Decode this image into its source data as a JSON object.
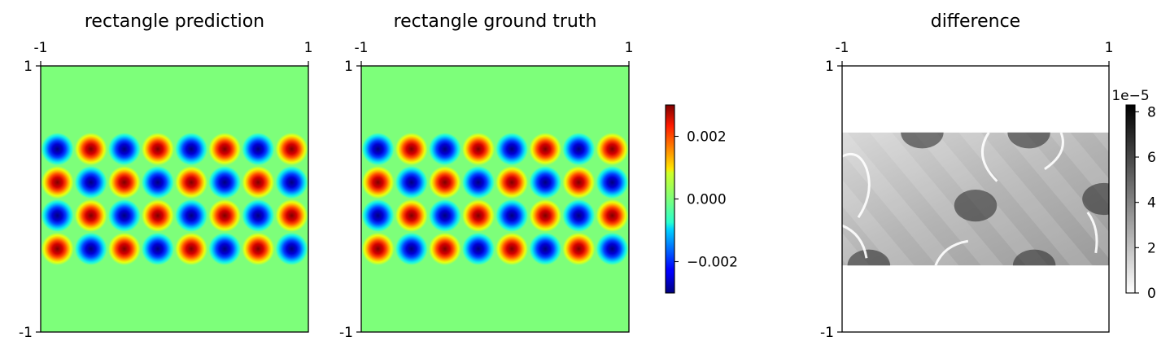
{
  "chart_data": [
    {
      "type": "heatmap",
      "title": "rectangle prediction",
      "xlim": [
        -1,
        1
      ],
      "ylim": [
        -1,
        1
      ],
      "x_tick_labels": [
        "-1",
        "1"
      ],
      "y_tick_labels": [
        "1",
        "-1"
      ],
      "colormap": "jet",
      "background_value": 0.0,
      "field": {
        "region": {
          "x": [
            -1,
            1
          ],
          "y": [
            -0.5,
            0.5
          ]
        },
        "cells_x": 8,
        "cells_y": 4,
        "amplitude": 0.003,
        "top_left_sign": -1
      }
    },
    {
      "type": "heatmap",
      "title": "rectangle ground truth",
      "xlim": [
        -1,
        1
      ],
      "ylim": [
        -1,
        1
      ],
      "x_tick_labels": [
        "-1",
        "1"
      ],
      "y_tick_labels": [
        "1",
        "-1"
      ],
      "colormap": "jet",
      "background_value": 0.0,
      "field": {
        "region": {
          "x": [
            -1,
            1
          ],
          "y": [
            -0.5,
            0.5
          ]
        },
        "cells_x": 8,
        "cells_y": 4,
        "amplitude": 0.003,
        "top_left_sign": -1
      },
      "colorbar": {
        "range": [
          -0.003,
          0.003
        ],
        "ticks": [
          -0.002,
          0.0,
          0.002
        ],
        "tick_labels": [
          "−0.002",
          "0.000",
          "0.002"
        ]
      }
    },
    {
      "type": "heatmap",
      "title": "difference",
      "xlim": [
        -1,
        1
      ],
      "ylim": [
        -1,
        1
      ],
      "x_tick_labels": [
        "-1",
        "1"
      ],
      "y_tick_labels": [
        "1",
        "-1"
      ],
      "colormap": "gray_r",
      "region": {
        "x": [
          -1,
          1
        ],
        "y": [
          -0.5,
          0.5
        ]
      },
      "colorbar": {
        "range": [
          0,
          8.3
        ],
        "ticks": [
          0,
          2,
          4,
          6,
          8
        ],
        "tick_labels": [
          "0",
          "2",
          "4",
          "6",
          "8"
        ],
        "offset_label": "1e−5"
      }
    }
  ],
  "colors": {
    "jet_zero": "#7dff7a",
    "frame": "#000000"
  }
}
